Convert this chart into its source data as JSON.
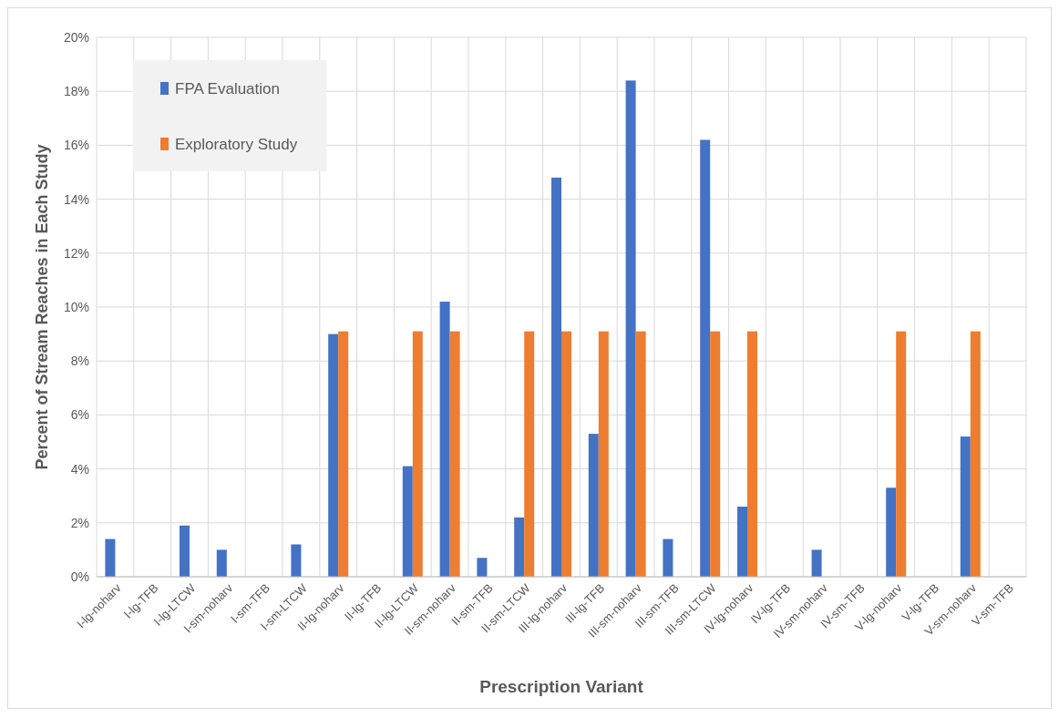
{
  "chart_data": {
    "type": "bar",
    "xlabel": "Prescription Variant",
    "ylabel": "Percent of Stream Reaches in Each Study",
    "categories": [
      "I-lg-noharv",
      "I-lg-TFB",
      "I-lg-LTCW",
      "I-sm-noharv",
      "I-sm-TFB",
      "I-sm-LTCW",
      "II-lg-noharv",
      "II-lg-TFB",
      "II-lg-LTCW",
      "II-sm-noharv",
      "II-sm-TFB",
      "II-sm-LTCW",
      "III-lg-noharv",
      "III-lg-TFB",
      "III-sm-noharv",
      "III-sm-TFB",
      "III-sm-LTCW",
      "IV-lg-noharv",
      "IV-lg-TFB",
      "IV-sm-noharv",
      "IV-sm-TFB",
      "V-lg-noharv",
      "V-lg-TFB",
      "V-sm-noharv",
      "V-sm-TFB"
    ],
    "series": [
      {
        "name": "FPA Evaluation",
        "color": "#4472c4",
        "values": [
          1.4,
          null,
          1.9,
          1.0,
          null,
          1.2,
          9.0,
          null,
          4.1,
          10.2,
          0.7,
          2.2,
          14.8,
          5.3,
          18.4,
          1.4,
          16.2,
          2.6,
          null,
          1.0,
          null,
          3.3,
          null,
          5.2,
          null
        ]
      },
      {
        "name": "Exploratory Study",
        "color": "#ed7d31",
        "values": [
          null,
          null,
          null,
          null,
          null,
          null,
          9.1,
          null,
          9.1,
          9.1,
          null,
          9.1,
          9.1,
          9.1,
          9.1,
          null,
          9.1,
          9.1,
          null,
          null,
          null,
          9.1,
          null,
          9.1,
          null
        ]
      }
    ],
    "ylim": [
      0,
      20
    ],
    "yticks": [
      {
        "value": 0,
        "label": "0%"
      },
      {
        "value": 2,
        "label": "2%"
      },
      {
        "value": 4,
        "label": "4%"
      },
      {
        "value": 6,
        "label": "6%"
      },
      {
        "value": 8,
        "label": "8%"
      },
      {
        "value": 10,
        "label": "10%"
      },
      {
        "value": 12,
        "label": "12%"
      },
      {
        "value": 14,
        "label": "14%"
      },
      {
        "value": 16,
        "label": "16%"
      },
      {
        "value": 18,
        "label": "18%"
      },
      {
        "value": 20,
        "label": "20%"
      }
    ],
    "grid": true,
    "legend": "top left"
  }
}
